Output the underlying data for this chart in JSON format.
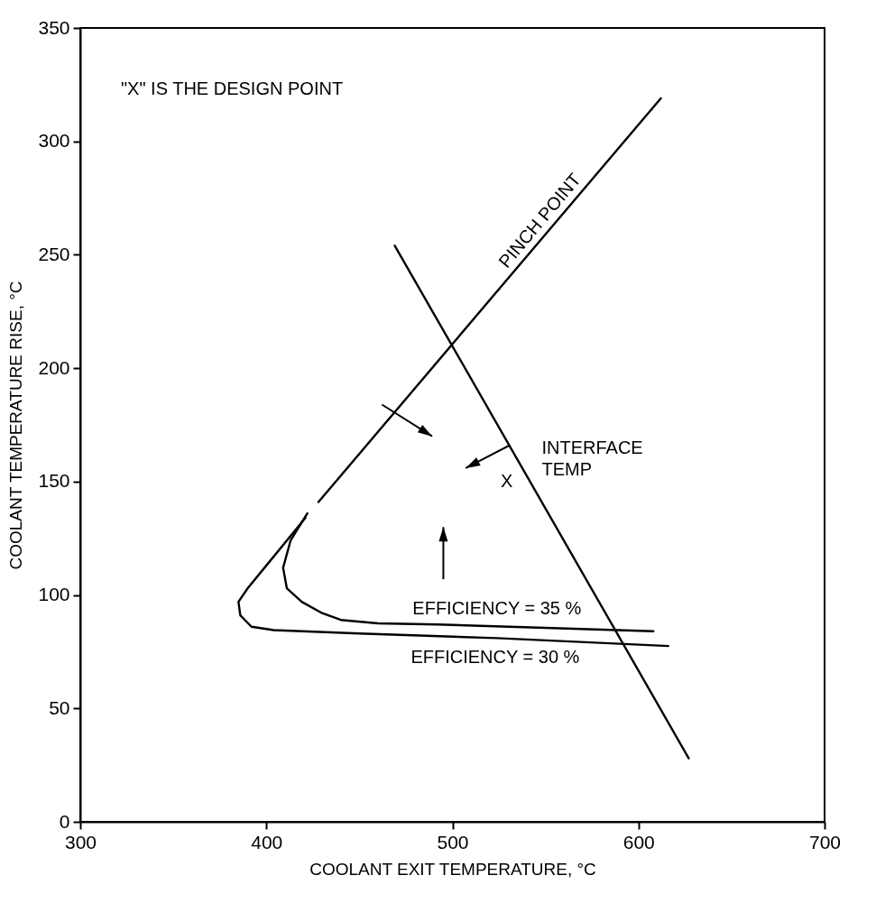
{
  "chart_data": {
    "type": "line",
    "xlabel": "COOLANT EXIT TEMPERATURE, °C",
    "ylabel": "COOLANT TEMPERATURE RISE, °C",
    "xlim": [
      300,
      700
    ],
    "xticks": [
      300,
      400,
      500,
      600,
      700
    ],
    "ylim": [
      0,
      350
    ],
    "yticks": [
      0,
      50,
      100,
      150,
      200,
      250,
      300,
      350
    ],
    "marker": "none",
    "line_style": "solid",
    "series": [
      {
        "name": "PINCH POINT",
        "color": "#000000",
        "x": [
          612,
          428
        ],
        "values": [
          319,
          141
        ]
      },
      {
        "name": "INTERFACE TEMP",
        "color": "#000000",
        "x": [
          469,
          627
        ],
        "values": [
          254,
          28
        ]
      },
      {
        "name": "EFFICIENCY = 35 %",
        "color": "#000000",
        "x": [
          422,
          413,
          409,
          411,
          419,
          430,
          440,
          460,
          492,
          550,
          608
        ],
        "values": [
          136,
          124,
          112,
          103,
          97,
          92,
          89,
          87.5,
          87,
          85.5,
          84
        ]
      },
      {
        "name": "EFFICIENCY = 30 %",
        "color": "#000000",
        "x": [
          421,
          400,
          390,
          385,
          386,
          392,
          404,
          450,
          524,
          616
        ],
        "values": [
          134,
          113,
          103,
          97,
          91,
          86,
          84.5,
          83,
          81,
          77.5
        ]
      }
    ],
    "annotations": [
      "\"X\" IS THE DESIGN POINT",
      "X"
    ]
  }
}
